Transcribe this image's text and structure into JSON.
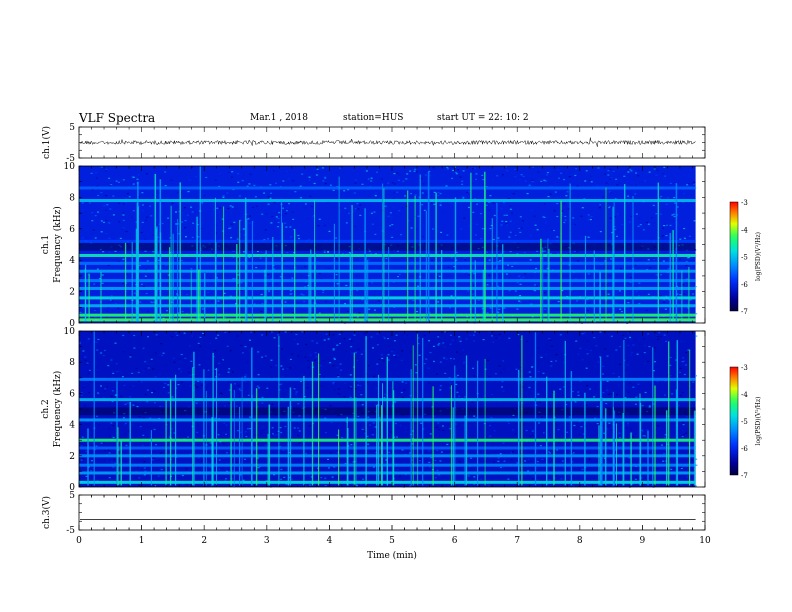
{
  "header": {
    "title": "VLF Spectra",
    "date": "Mar.1 , 2018",
    "station": "station=HUS",
    "start": "start UT = 22: 10: 2"
  },
  "chart_data": [
    {
      "type": "line",
      "panel": "ch1-voltage",
      "ylabel": "ch.1(V)",
      "ylim": [
        -5,
        5
      ],
      "yticks": [
        "-5",
        "5"
      ],
      "xlim": [
        0,
        9.85
      ],
      "baseline": 0,
      "note_level": "noisy trace near 0 V, peak-to-peak about ±0.5 V"
    },
    {
      "type": "heatmap",
      "panel": "ch1-spectrogram",
      "ylabel_channel": "ch.1",
      "ylabel": "Frequency (kHz)",
      "ylim": [
        0,
        10
      ],
      "yticks": [
        "0",
        "2",
        "4",
        "6",
        "8",
        "10"
      ],
      "xlim": [
        0,
        9.85
      ],
      "colorbar": {
        "label": "log(PSD)(V²/Hz)",
        "range": [
          -7,
          -3
        ],
        "ticks": [
          "-3",
          "-4",
          "-5",
          "-6",
          "-7"
        ]
      },
      "bands_khz": [
        0.2,
        0.5,
        1.1,
        1.6,
        2.2,
        2.7,
        3.3,
        3.8,
        4.3,
        5.2,
        7.8,
        8.6
      ],
      "band_level": [
        -4.2,
        -4.3,
        -5.1,
        -4.8,
        -5.2,
        -5.4,
        -5.2,
        -5.5,
        -4.6,
        -5.8,
        -5.0,
        -5.6
      ],
      "background_level": -6.1
    },
    {
      "type": "heatmap",
      "panel": "ch2-spectrogram",
      "ylabel_channel": "ch.2",
      "ylabel": "Frequency (kHz)",
      "ylim": [
        0,
        10
      ],
      "yticks": [
        "0",
        "2",
        "4",
        "6",
        "8",
        "10"
      ],
      "xlim": [
        0,
        9.85
      ],
      "colorbar": {
        "label": "log(PSD)(V²/Hz)",
        "range": [
          -7,
          -3
        ],
        "ticks": [
          "-3",
          "-4",
          "-5",
          "-6",
          "-7"
        ]
      },
      "bands_khz": [
        0.3,
        0.9,
        1.4,
        2.0,
        2.5,
        3.0,
        4.3,
        5.6,
        6.9
      ],
      "band_level": [
        -4.8,
        -5.2,
        -5.4,
        -5.3,
        -5.6,
        -4.4,
        -5.2,
        -5.0,
        -5.4
      ],
      "background_level": -6.3
    },
    {
      "type": "line",
      "panel": "ch3-voltage",
      "ylabel": "ch.3(V)",
      "ylim": [
        -5,
        5
      ],
      "yticks": [
        "-5",
        "5"
      ],
      "xlim": [
        0,
        9.85
      ],
      "baseline": -2,
      "note_level": "flat line near -2 V"
    }
  ],
  "xaxis": {
    "label": "Time (min)",
    "range": [
      0,
      10
    ],
    "ticks": [
      "0",
      "1",
      "2",
      "3",
      "4",
      "5",
      "6",
      "7",
      "8",
      "9",
      "10"
    ]
  }
}
